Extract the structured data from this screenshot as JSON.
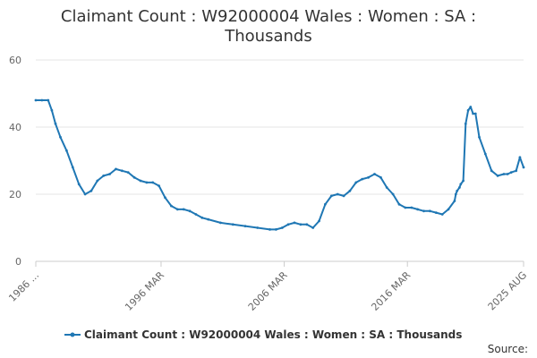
{
  "chart_data": {
    "type": "line",
    "title_lines": [
      "Claimant Count : W92000004 Wales : Women : SA :",
      "Thousands"
    ],
    "xlabel": "",
    "ylabel": "",
    "x_range": [
      "1986 JAN",
      "2025 AUG"
    ],
    "x_ticks": [
      "1986 ...",
      "1996 MAR",
      "2006 MAR",
      "2016 MAR",
      "2025 AUG"
    ],
    "y_ticks": [
      0,
      20,
      40,
      60
    ],
    "ylim": [
      0,
      60
    ],
    "grid": "horizontal",
    "legend_position": "bottom",
    "series": [
      {
        "name": "Claimant Count : W92000004 Wales : Women : SA : Thousands",
        "color": "#1f77b4",
        "x": [
          1986.0,
          1986.5,
          1987.0,
          1987.3,
          1987.6,
          1988.0,
          1988.5,
          1989.0,
          1989.5,
          1990.0,
          1990.5,
          1991.0,
          1991.5,
          1992.0,
          1992.5,
          1993.0,
          1993.5,
          1994.0,
          1994.5,
          1995.0,
          1995.5,
          1996.0,
          1996.5,
          1997.0,
          1997.5,
          1998.0,
          1998.5,
          1999.0,
          1999.5,
          2000.0,
          2001.0,
          2002.0,
          2003.0,
          2004.0,
          2005.0,
          2005.5,
          2006.0,
          2006.5,
          2007.0,
          2007.5,
          2008.0,
          2008.5,
          2009.0,
          2009.5,
          2010.0,
          2010.5,
          2011.0,
          2011.5,
          2012.0,
          2012.5,
          2013.0,
          2013.5,
          2014.0,
          2014.5,
          2015.0,
          2015.5,
          2016.0,
          2016.5,
          2017.0,
          2017.5,
          2018.0,
          2018.5,
          2019.0,
          2019.5,
          2020.0,
          2020.1,
          2020.2,
          2020.4,
          2020.5,
          2020.7,
          2020.9,
          2021.1,
          2021.3,
          2021.5,
          2021.7,
          2022.0,
          2022.5,
          2023.0,
          2023.5,
          2024.0,
          2024.3,
          2024.6,
          2025.0,
          2025.3,
          2025.6
        ],
        "y": [
          48,
          48,
          48,
          45,
          41,
          37,
          33,
          28,
          23,
          20,
          21,
          24,
          25.5,
          26,
          27.5,
          27,
          26.5,
          25,
          24,
          23.5,
          23.5,
          22.5,
          19,
          16.5,
          15.5,
          15.5,
          15,
          14,
          13,
          12.5,
          11.5,
          11,
          10.5,
          10,
          9.5,
          9.5,
          10,
          11,
          11.5,
          11,
          11,
          10,
          12,
          17,
          19.5,
          20,
          19.5,
          21,
          23.5,
          24.5,
          25,
          26,
          25,
          22,
          20,
          17,
          16,
          16,
          15.5,
          15,
          15,
          14.5,
          14,
          15.5,
          18,
          20,
          21,
          22,
          23,
          24,
          41,
          45,
          46,
          44,
          44,
          37,
          32,
          27,
          25.5,
          26,
          26,
          26.5,
          27,
          31,
          28
        ]
      }
    ]
  },
  "legend_label": "Claimant Count : W92000004 Wales : Women : SA : Thousands",
  "source_label": "Source:"
}
